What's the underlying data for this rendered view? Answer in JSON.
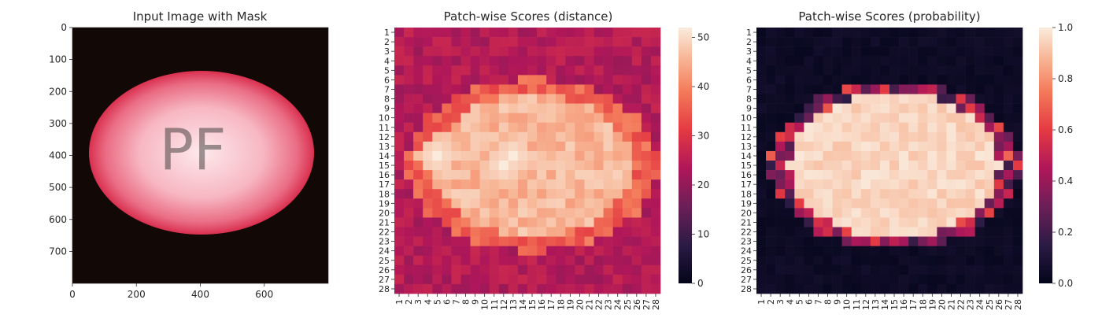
{
  "panel1": {
    "title": "Input Image with Mask",
    "xticks": [
      "0",
      "200",
      "400",
      "600"
    ],
    "xtick_values": [
      0,
      200,
      400,
      600
    ],
    "yticks": [
      "0",
      "100",
      "200",
      "300",
      "400",
      "500",
      "600",
      "700"
    ],
    "ytick_values": [
      0,
      100,
      200,
      300,
      400,
      500,
      600,
      700
    ],
    "extent": [
      800,
      800
    ],
    "overlay_text": "PF",
    "colors": {
      "background": "#120806",
      "ellipse_edge": "#e03a5a",
      "ellipse_mid": "#f6a2b0",
      "ellipse_center": "#fde9ec"
    }
  },
  "panel2": {
    "title": "Patch-wise Scores (distance)",
    "colorbar_ticks": [
      "0",
      "10",
      "20",
      "30",
      "40",
      "50"
    ],
    "colorbar_values": [
      0,
      10,
      20,
      30,
      40,
      50
    ],
    "vmin": 0,
    "vmax": 52
  },
  "panel3": {
    "title": "Patch-wise Scores (probability)",
    "colorbar_ticks": [
      "0.0",
      "0.2",
      "0.4",
      "0.6",
      "0.8",
      "1.0"
    ],
    "colorbar_values": [
      0,
      0.2,
      0.4,
      0.6,
      0.8,
      1.0
    ],
    "vmin": 0,
    "vmax": 1
  },
  "grid_labels": [
    "1",
    "2",
    "3",
    "4",
    "5",
    "6",
    "7",
    "8",
    "9",
    "10",
    "11",
    "12",
    "13",
    "14",
    "15",
    "16",
    "17",
    "18",
    "19",
    "20",
    "21",
    "22",
    "23",
    "24",
    "25",
    "26",
    "27",
    "28"
  ],
  "chart_data": [
    {
      "type": "image",
      "title": "Input Image with Mask",
      "xlim": [
        0,
        800
      ],
      "ylim": [
        800,
        0
      ]
    },
    {
      "type": "heatmap",
      "title": "Patch-wise Scores (distance)",
      "rows": 28,
      "cols": 28,
      "value_range": [
        0,
        52
      ],
      "pattern": "high values (~42-52) inside ellipse centered at (14.5,14.5) with semi-axes ~12.5 (x) and ~8.5 (y); low values (~20-28) outside",
      "peak_cells": [
        [
          14,
          5
        ],
        [
          14,
          13
        ],
        [
          15,
          12
        ]
      ],
      "outside_value": 24,
      "inside_value": 46,
      "peak_value": 52
    },
    {
      "type": "heatmap",
      "title": "Patch-wise Scores (probability)",
      "rows": 28,
      "cols": 28,
      "value_range": [
        0,
        1
      ],
      "pattern": "values ~0.9-1.0 inside ellipse, ~0.0-0.05 outside, transitional 0.2-0.6 on the boundary",
      "outside_value": 0.02,
      "inside_value": 0.95
    }
  ]
}
